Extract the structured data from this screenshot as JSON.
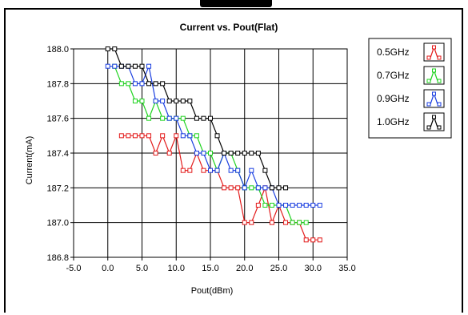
{
  "chart_data": {
    "type": "line",
    "title": "Current vs. Pout(Flat)",
    "xlabel": "Pout(dBm)",
    "ylabel": "Current(mA)",
    "xlim": [
      -5.0,
      35.0
    ],
    "ylim": [
      186.8,
      188.0
    ],
    "xticks": [
      "-5.0",
      "0.0",
      "5.0",
      "10.0",
      "15.0",
      "20.0",
      "25.0",
      "30.0",
      "35.0"
    ],
    "yticks": [
      "188.0",
      "187.8",
      "187.6",
      "187.4",
      "187.2",
      "187.0",
      "186.8"
    ],
    "grid": true,
    "legend_position": "right",
    "series": [
      {
        "name": "0.5GHz",
        "color": "#e31b1b",
        "x": [
          2,
          3,
          4,
          5,
          6,
          7,
          8,
          9,
          10,
          11,
          12,
          13,
          14,
          15,
          16,
          17,
          18,
          19,
          20,
          21,
          22,
          23,
          24,
          25,
          26,
          27,
          28,
          29,
          30,
          31
        ],
        "y": [
          187.5,
          187.5,
          187.5,
          187.5,
          187.5,
          187.4,
          187.5,
          187.4,
          187.5,
          187.3,
          187.3,
          187.4,
          187.3,
          187.3,
          187.3,
          187.2,
          187.2,
          187.2,
          187.0,
          187.0,
          187.1,
          187.2,
          187.0,
          187.1,
          187.0,
          187.0,
          187.0,
          186.9,
          186.9,
          186.9
        ]
      },
      {
        "name": "0.7GHz",
        "color": "#1ed31e",
        "x": [
          1,
          2,
          3,
          4,
          5,
          6,
          7,
          8,
          9,
          10,
          11,
          12,
          13,
          14,
          15,
          16,
          17,
          18,
          19,
          20,
          21,
          22,
          23,
          24,
          25,
          26,
          27,
          28,
          29
        ],
        "y": [
          187.9,
          187.8,
          187.8,
          187.7,
          187.7,
          187.6,
          187.7,
          187.6,
          187.6,
          187.6,
          187.6,
          187.5,
          187.5,
          187.4,
          187.4,
          187.3,
          187.4,
          187.4,
          187.3,
          187.2,
          187.2,
          187.2,
          187.1,
          187.1,
          187.1,
          187.1,
          187.0,
          187.0,
          187.0
        ]
      },
      {
        "name": "0.9GHz",
        "color": "#1a3ee0",
        "x": [
          0,
          1,
          2,
          3,
          4,
          5,
          6,
          7,
          8,
          9,
          10,
          11,
          12,
          13,
          14,
          15,
          16,
          17,
          18,
          19,
          20,
          21,
          22,
          23,
          24,
          25,
          26,
          27,
          28,
          29,
          30,
          31
        ],
        "y": [
          187.9,
          187.9,
          187.9,
          187.9,
          187.8,
          187.8,
          187.9,
          187.7,
          187.7,
          187.6,
          187.6,
          187.5,
          187.5,
          187.4,
          187.4,
          187.3,
          187.3,
          187.4,
          187.3,
          187.3,
          187.2,
          187.3,
          187.2,
          187.2,
          187.2,
          187.1,
          187.1,
          187.1,
          187.1,
          187.1,
          187.1,
          187.1
        ]
      },
      {
        "name": "1.0GHz",
        "color": "#000000",
        "x": [
          0,
          1,
          2,
          3,
          4,
          5,
          6,
          7,
          8,
          9,
          10,
          11,
          12,
          13,
          14,
          15,
          16,
          17,
          18,
          19,
          20,
          21,
          22,
          23,
          24,
          25,
          26
        ],
        "y": [
          188.0,
          188.0,
          187.9,
          187.9,
          187.9,
          187.9,
          187.8,
          187.8,
          187.8,
          187.7,
          187.7,
          187.7,
          187.7,
          187.6,
          187.6,
          187.6,
          187.5,
          187.4,
          187.4,
          187.4,
          187.4,
          187.4,
          187.4,
          187.3,
          187.2,
          187.2,
          187.2
        ]
      }
    ]
  }
}
